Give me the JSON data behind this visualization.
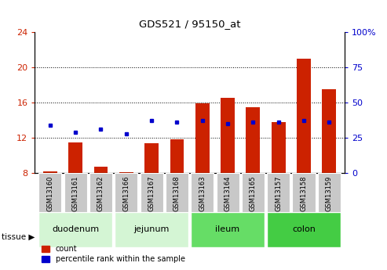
{
  "title": "GDS521 / 95150_at",
  "samples": [
    "GSM13160",
    "GSM13161",
    "GSM13162",
    "GSM13166",
    "GSM13167",
    "GSM13168",
    "GSM13163",
    "GSM13164",
    "GSM13165",
    "GSM13157",
    "GSM13158",
    "GSM13159"
  ],
  "count_values": [
    8.2,
    11.5,
    8.7,
    8.1,
    11.4,
    11.85,
    15.95,
    16.5,
    15.5,
    13.8,
    21.0,
    17.5
  ],
  "percentile_values": [
    34,
    29,
    31,
    28,
    37,
    36,
    37,
    35,
    36,
    36,
    37,
    36
  ],
  "tissue_groups": [
    {
      "label": "duodenum",
      "start": 0,
      "end": 2,
      "color": "#d4f5d4"
    },
    {
      "label": "jejunum",
      "start": 3,
      "end": 5,
      "color": "#d4f5d4"
    },
    {
      "label": "ileum",
      "start": 6,
      "end": 8,
      "color": "#66dd66"
    },
    {
      "label": "colon",
      "start": 9,
      "end": 11,
      "color": "#44cc44"
    }
  ],
  "ylim_left": [
    8,
    24
  ],
  "ylim_right": [
    0,
    100
  ],
  "yticks_left": [
    8,
    12,
    16,
    20,
    24
  ],
  "yticks_right": [
    0,
    25,
    50,
    75,
    100
  ],
  "bar_width": 0.55,
  "red_color": "#cc2200",
  "blue_color": "#0000cc",
  "bg_xticklabel": "#c8c8c8",
  "legend_count": "count",
  "legend_pct": "percentile rank within the sample",
  "grid_lines": [
    12,
    16,
    20
  ],
  "right_ytick_labels": [
    "0",
    "25",
    "50",
    "75",
    "100%"
  ]
}
